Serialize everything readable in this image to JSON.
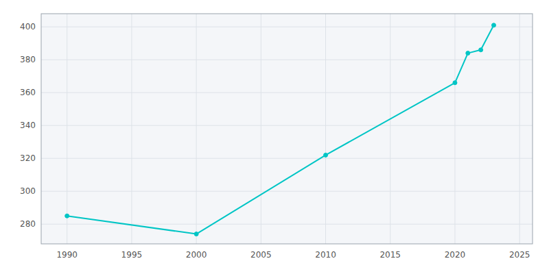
{
  "chart_data": {
    "type": "line",
    "x": [
      1990,
      2000,
      2010,
      2020,
      2021,
      2022,
      2023
    ],
    "values": [
      285,
      274,
      322,
      366,
      384,
      386,
      401
    ],
    "color": "#00C5C5",
    "marker": "circle",
    "xlim": [
      1988,
      2026
    ],
    "ylim": [
      268,
      408
    ],
    "xticks": [
      1990,
      1995,
      2000,
      2005,
      2010,
      2015,
      2020,
      2025
    ],
    "yticks": [
      280,
      300,
      320,
      340,
      360,
      380,
      400
    ],
    "grid": true
  }
}
